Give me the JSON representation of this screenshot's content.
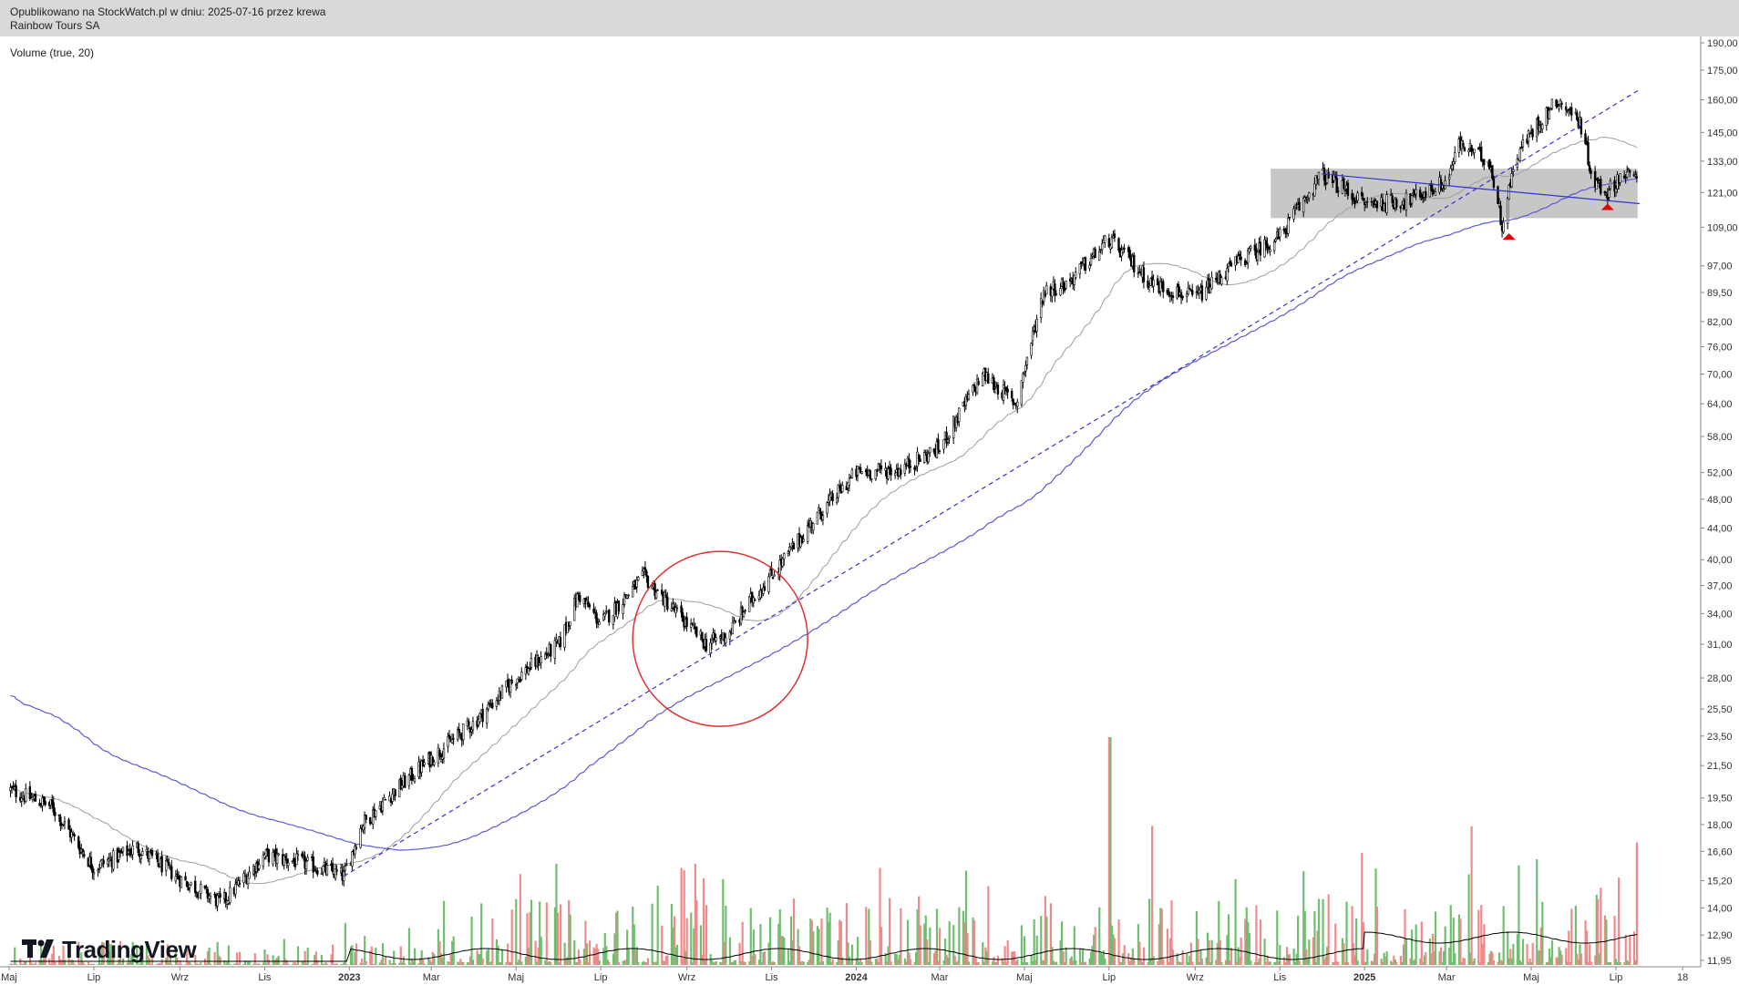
{
  "header": {
    "published": "Opublikowano na StockWatch.pl w dniu: 2025-07-16 przez krewa",
    "symbol_name": "Rainbow Tours SA"
  },
  "indicator": {
    "label": "Volume (true, 20)"
  },
  "brand": {
    "name": "TradingView"
  },
  "chart_data": {
    "type": "candlestick",
    "scale": "log",
    "y_ticks": [
      "190,00",
      "175,00",
      "160,00",
      "145,00",
      "133,00",
      "121,00",
      "109,00",
      "97,00",
      "89,50",
      "82,00",
      "76,00",
      "70,00",
      "64,00",
      "58,00",
      "52,00",
      "48,00",
      "44,00",
      "40,00",
      "37,00",
      "34,00",
      "31,00",
      "28,00",
      "25,50",
      "23,50",
      "21,50",
      "19,50",
      "18,00",
      "16,60",
      "15,20",
      "14,00",
      "12,90",
      "11,95"
    ],
    "x_ticks": [
      {
        "label": "Maj",
        "bold": false
      },
      {
        "label": "Lip",
        "bold": false
      },
      {
        "label": "Wrz",
        "bold": false
      },
      {
        "label": "Lis",
        "bold": false
      },
      {
        "label": "2023",
        "bold": true
      },
      {
        "label": "Mar",
        "bold": false
      },
      {
        "label": "Maj",
        "bold": false
      },
      {
        "label": "Lip",
        "bold": false
      },
      {
        "label": "Wrz",
        "bold": false
      },
      {
        "label": "Lis",
        "bold": false
      },
      {
        "label": "2024",
        "bold": true
      },
      {
        "label": "Mar",
        "bold": false
      },
      {
        "label": "Maj",
        "bold": false
      },
      {
        "label": "Lip",
        "bold": false
      },
      {
        "label": "Wrz",
        "bold": false
      },
      {
        "label": "Lis",
        "bold": false
      },
      {
        "label": "2025",
        "bold": true
      },
      {
        "label": "Mar",
        "bold": false
      },
      {
        "label": "Maj",
        "bold": false
      },
      {
        "label": "Lip",
        "bold": false
      },
      {
        "label": "18",
        "bold": false
      }
    ],
    "price_path": [
      [
        "2022-05-01",
        20.0
      ],
      [
        "2022-06-01",
        19.0
      ],
      [
        "2022-07-01",
        15.8
      ],
      [
        "2022-08-01",
        16.8
      ],
      [
        "2022-09-01",
        15.3
      ],
      [
        "2022-10-01",
        14.2
      ],
      [
        "2022-11-01",
        16.4
      ],
      [
        "2022-12-01",
        16.0
      ],
      [
        "2022-12-28",
        15.4
      ],
      [
        "2023-01-10",
        18.0
      ],
      [
        "2023-02-01",
        19.8
      ],
      [
        "2023-03-01",
        22.0
      ],
      [
        "2023-04-01",
        24.5
      ],
      [
        "2023-05-01",
        28.0
      ],
      [
        "2023-06-01",
        31.0
      ],
      [
        "2023-06-15",
        36.0
      ],
      [
        "2023-07-01",
        33.0
      ],
      [
        "2023-08-01",
        38.0
      ],
      [
        "2023-08-25",
        34.0
      ],
      [
        "2023-09-15",
        31.0
      ],
      [
        "2023-10-01",
        32.0
      ],
      [
        "2023-10-20",
        36.0
      ],
      [
        "2023-11-10",
        40.0
      ],
      [
        "2023-12-01",
        45.0
      ],
      [
        "2024-01-01",
        52.0
      ],
      [
        "2024-02-01",
        52.5
      ],
      [
        "2024-03-01",
        56.0
      ],
      [
        "2024-04-01",
        70.0
      ],
      [
        "2024-04-25",
        64.0
      ],
      [
        "2024-05-15",
        90.0
      ],
      [
        "2024-06-01",
        92.0
      ],
      [
        "2024-07-01",
        105.0
      ],
      [
        "2024-08-01",
        92.0
      ],
      [
        "2024-09-01",
        88.0
      ],
      [
        "2024-10-01",
        98.0
      ],
      [
        "2024-11-01",
        106.0
      ],
      [
        "2024-12-01",
        128.0
      ],
      [
        "2025-01-01",
        117.0
      ],
      [
        "2025-02-01",
        118.0
      ],
      [
        "2025-03-01",
        125.0
      ],
      [
        "2025-03-10",
        140.0
      ],
      [
        "2025-04-01",
        133.0
      ],
      [
        "2025-04-10",
        110.0
      ],
      [
        "2025-04-20",
        135.0
      ],
      [
        "2025-05-01",
        145.0
      ],
      [
        "2025-05-20",
        160.0
      ],
      [
        "2025-06-05",
        150.0
      ],
      [
        "2025-06-15",
        125.0
      ],
      [
        "2025-06-25",
        121.0
      ],
      [
        "2025-07-05",
        128.0
      ],
      [
        "2025-07-16",
        126.0
      ]
    ],
    "moving_averages": [
      {
        "name": "MA50",
        "color": "#9e9e9e"
      },
      {
        "name": "MA200",
        "color": "#5b5bd6"
      }
    ],
    "trendlines": [
      {
        "style": "dashed",
        "color": "#3333cc",
        "from": [
          "2022-12-28",
          15.4
        ],
        "to": [
          "2025-07-18",
          165.0
        ]
      },
      {
        "style": "solid",
        "color": "#3333cc",
        "from": [
          "2024-12-01",
          128.0
        ],
        "to": [
          "2025-07-18",
          117.0
        ]
      }
    ],
    "zone": {
      "color": "#bdbdbd",
      "from": "2024-11-01",
      "to": "2025-07-10",
      "low": 112.0,
      "high": 130.0
    },
    "annotations": [
      {
        "type": "circle",
        "color": "#e03030",
        "center": [
          "2023-09-25",
          31.5
        ]
      },
      {
        "type": "triangle-up",
        "color": "#e00000",
        "at": [
          "2025-04-15",
          107.0
        ]
      },
      {
        "type": "triangle-up",
        "color": "#e00000",
        "at": [
          "2025-06-25",
          117.0
        ]
      }
    ],
    "colors": {
      "candle": "#000000",
      "volume_up": "#70bf70",
      "volume_down": "#f08a8a",
      "volume_ma": "#000000",
      "header_bg": "#d9d9d9"
    },
    "grid": false
  }
}
